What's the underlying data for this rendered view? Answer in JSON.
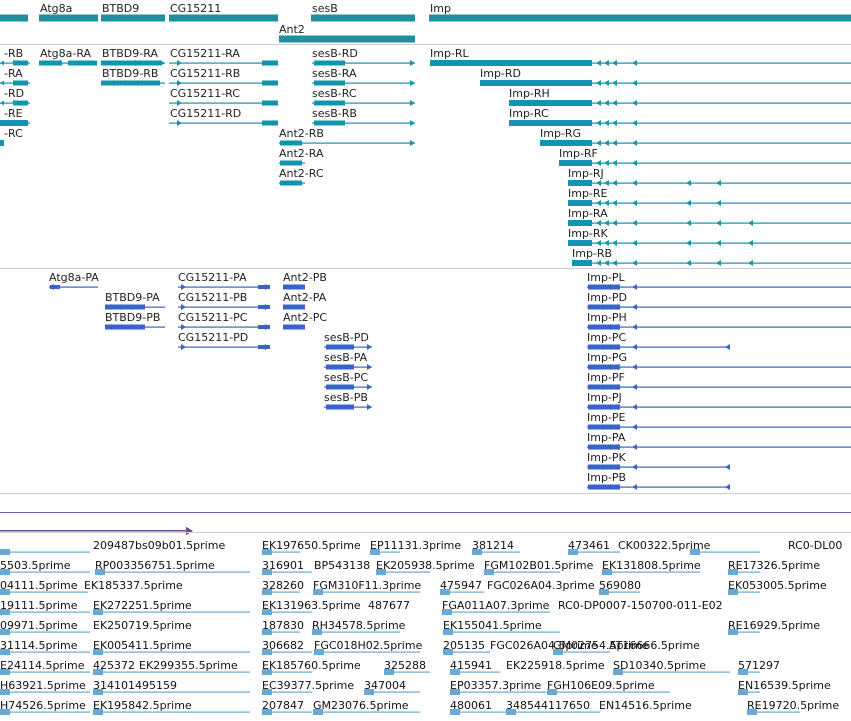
{
  "colors": {
    "gene": "#1f8f9e",
    "transcript": "#1394ad",
    "protein": "#3a62c7",
    "est": "#6aa9d6",
    "signal": "#6f4aa8",
    "separator": "#d0d0d0"
  },
  "genes_track": {
    "genes": [
      {
        "label": "",
        "name": "gene-left-edge"
      },
      {
        "label": "Atg8a",
        "name": "gene-atg8a"
      },
      {
        "label": "BTBD9",
        "name": "gene-btbd9"
      },
      {
        "label": "CG15211",
        "name": "gene-cg15211"
      },
      {
        "label": "sesB",
        "name": "gene-sesb"
      },
      {
        "label": "Ant2",
        "name": "gene-ant2"
      },
      {
        "label": "Imp",
        "name": "gene-imp"
      }
    ]
  },
  "transcripts_track": {
    "labels": [
      "-RB",
      "-RA",
      "-RD",
      "-RE",
      "-RC",
      "Atg8a-RA",
      "BTBD9-RA",
      "BTBD9-RB",
      "CG15211-RA",
      "CG15211-RB",
      "CG15211-RC",
      "CG15211-RD",
      "sesB-RD",
      "sesB-RA",
      "sesB-RC",
      "sesB-RB",
      "Ant2-RB",
      "Ant2-RA",
      "Ant2-RC",
      "Imp-RL",
      "Imp-RD",
      "Imp-RH",
      "Imp-RC",
      "Imp-RG",
      "Imp-RF",
      "Imp-RJ",
      "Imp-RE",
      "Imp-RA",
      "Imp-RK",
      "Imp-RB"
    ]
  },
  "proteins_track": {
    "labels": [
      "Atg8a-PA",
      "BTBD9-PA",
      "BTBD9-PB",
      "CG15211-PA",
      "CG15211-PB",
      "CG15211-PC",
      "CG15211-PD",
      "Ant2-PB",
      "Ant2-PA",
      "Ant2-PC",
      "sesB-PD",
      "sesB-PA",
      "sesB-PC",
      "sesB-PB",
      "Imp-PL",
      "Imp-PD",
      "Imp-PH",
      "Imp-PC",
      "Imp-PG",
      "Imp-PF",
      "Imp-PJ",
      "Imp-PE",
      "Imp-PA",
      "Imp-PK",
      "Imp-PB"
    ]
  },
  "est_track": {
    "labels": [
      "209487bs09b01.5prime",
      "EK197650.5prime",
      "EP11131.3prime",
      "381214",
      "473461",
      "CK00322.5prime",
      "RC0-DL00",
      "5503.5prime",
      "RP003356751.5prime",
      "316901",
      "BP543138",
      "EK205938.5prime",
      "FGM102B01.5prime",
      "EK131808.5prime",
      "RE17326.5prime",
      "04111.5prime",
      "EK185337.5prime",
      "328260",
      "FGM310F11.3prime",
      "475947",
      "FGC026A04.3prime",
      "569080",
      "EK053005.5prime",
      "19111.5prime",
      "EK272251.5prime",
      "EK131963.5prime",
      "487677",
      "FGA011A07.3prime",
      "RC0-DP0007-150700-011-E02",
      "09971.5prime",
      "EK250719.5prime",
      "187830",
      "RH34578.5prime",
      "EK155041.5prime",
      "RE16929.5prime",
      "31114.5prime",
      "EK005411.5prime",
      "306682",
      "FGC018H02.5prime",
      "205135",
      "FGC026A04.5prime",
      "GM02754.5prime",
      "AT16666.5prime",
      "E24114.5prime",
      "425372",
      "EK299355.5prime",
      "EK185760.5prime",
      "325288",
      "415941",
      "EK225918.5prime",
      "SD10340.5prime",
      "571297",
      "H63921.5prime",
      "314101495159",
      "EC39377.5prime",
      "347004",
      "EP03357.3prime",
      "FGH106E09.5prime",
      "EN16539.5prime",
      "H74526.5prime",
      "EK195842.5prime",
      "207847",
      "GM23076.5prime",
      "480061",
      "348544117650",
      "EN14516.5prime",
      "RE19720.5prime"
    ]
  }
}
